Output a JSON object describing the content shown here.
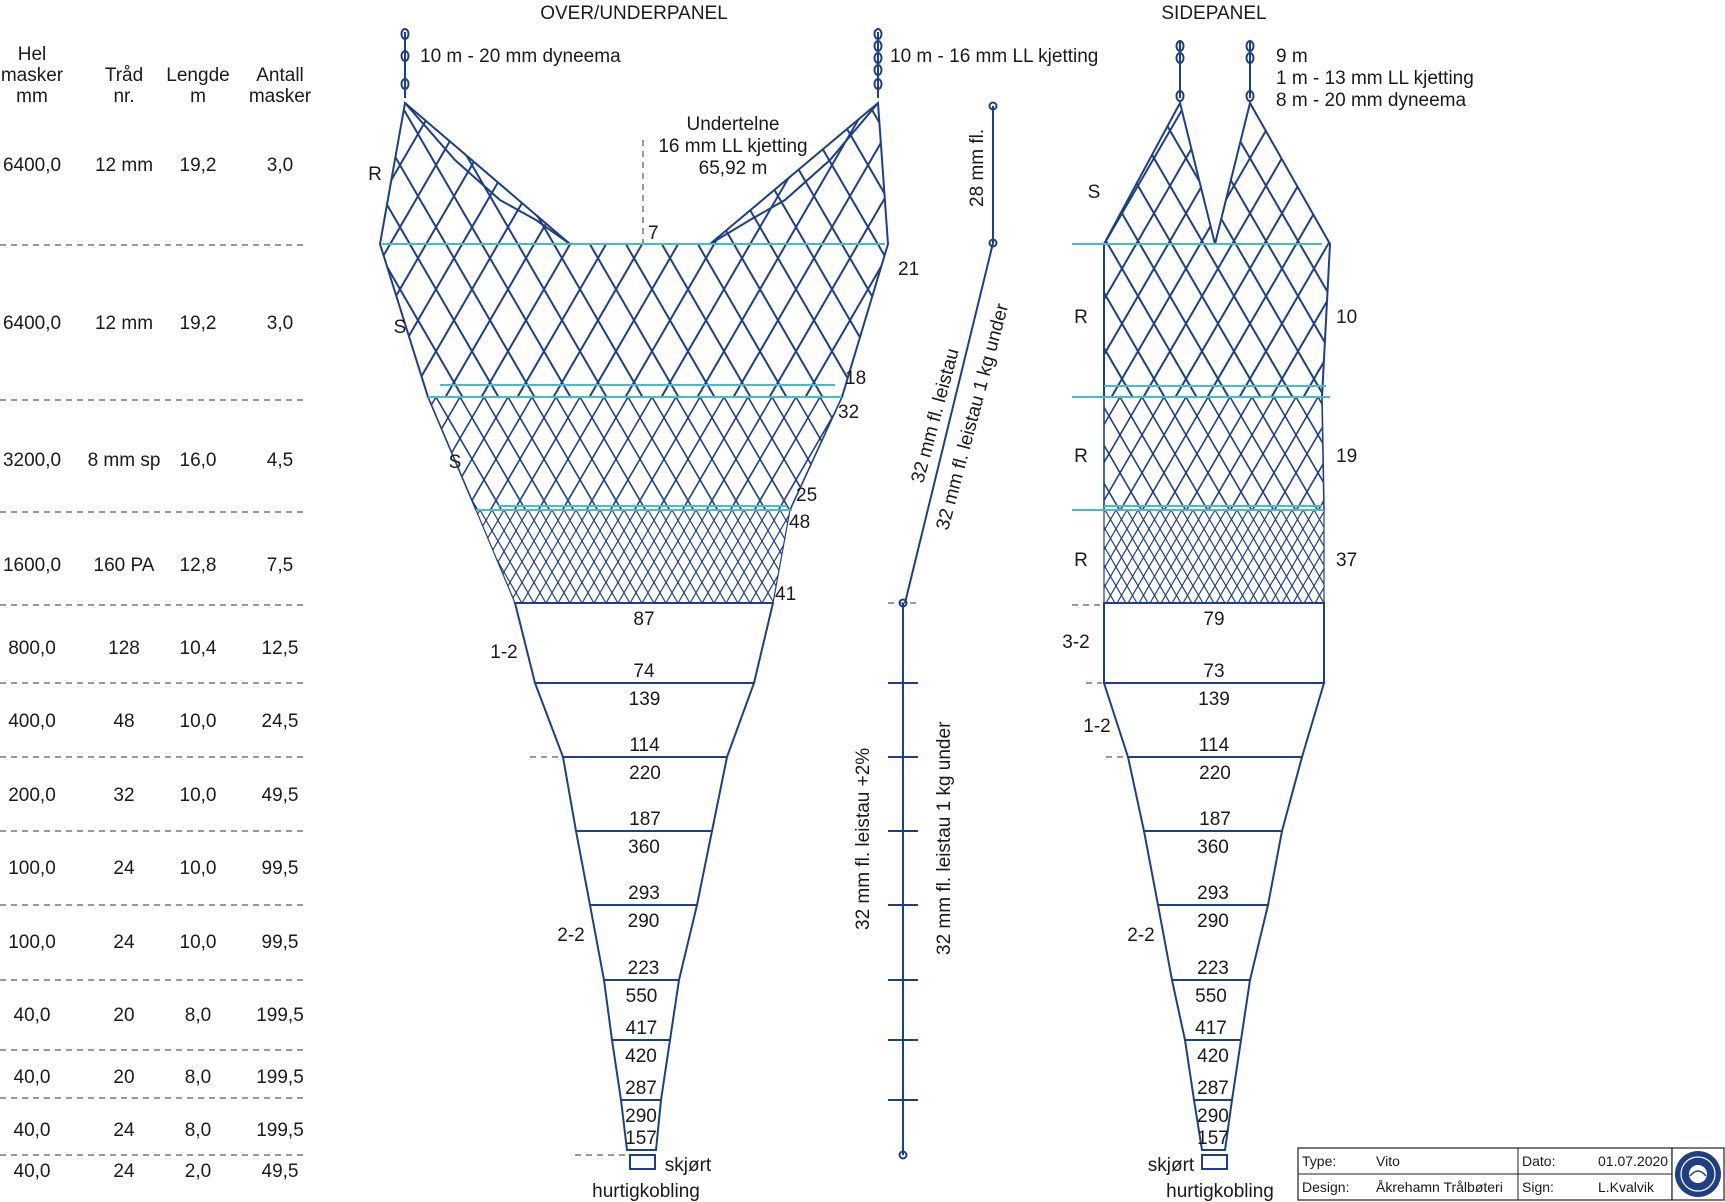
{
  "colors": {
    "net": "#1f3f85",
    "teal": "#46bdc6",
    "text": "#1a1a1a"
  },
  "headers": {
    "col1": [
      "Hel",
      "masker",
      "mm"
    ],
    "col2": [
      "Tråd",
      "nr."
    ],
    "col3": [
      "Lengde",
      "m"
    ],
    "col4": [
      "Antall",
      "masker"
    ]
  },
  "rows": [
    {
      "mesh": "6400,0",
      "thread": "12 mm",
      "length": "19,2",
      "count": "3,0"
    },
    {
      "mesh": "6400,0",
      "thread": "12 mm",
      "length": "19,2",
      "count": "3,0"
    },
    {
      "mesh": "3200,0",
      "thread": "8 mm sp",
      "length": "16,0",
      "count": "4,5"
    },
    {
      "mesh": "1600,0",
      "thread": "160 PA",
      "length": "12,8",
      "count": "7,5"
    },
    {
      "mesh": "800,0",
      "thread": "128",
      "length": "10,4",
      "count": "12,5"
    },
    {
      "mesh": "400,0",
      "thread": "48",
      "length": "10,0",
      "count": "24,5"
    },
    {
      "mesh": "200,0",
      "thread": "32",
      "length": "10,0",
      "count": "49,5"
    },
    {
      "mesh": "100,0",
      "thread": "24",
      "length": "10,0",
      "count": "99,5"
    },
    {
      "mesh": "100,0",
      "thread": "24",
      "length": "10,0",
      "count": "99,5"
    },
    {
      "mesh": "40,0",
      "thread": "20",
      "length": "8,0",
      "count": "199,5"
    },
    {
      "mesh": "40,0",
      "thread": "20",
      "length": "8,0",
      "count": "199,5"
    },
    {
      "mesh": "40,0",
      "thread": "24",
      "length": "8,0",
      "count": "199,5"
    },
    {
      "mesh": "40,0",
      "thread": "24",
      "length": "2,0",
      "count": "49,5"
    }
  ],
  "over": {
    "title": "OVER/UNDERPANEL",
    "rope_left": "10 m - 20 mm dyneema",
    "rope_right": "10 m - 16 mm LL kjetting",
    "undertelne": [
      "Undertelne",
      "16 mm LL kjetting",
      "65,92 m"
    ],
    "labels": {
      "R": "R",
      "S1": "S",
      "S2": "S",
      "n7": "7",
      "n21": "21",
      "n18": "18",
      "n32": "32",
      "n25": "25",
      "n48": "48",
      "n41": "41",
      "s12": "1-2",
      "s22": "2-2"
    },
    "numbers": [
      [
        "87",
        "74"
      ],
      [
        "139",
        "114"
      ],
      [
        "220",
        "187"
      ],
      [
        "360",
        "293"
      ],
      [
        "290",
        "223"
      ],
      [
        "550",
        "417"
      ],
      [
        "420",
        "287"
      ],
      [
        "290",
        "157"
      ]
    ],
    "skjort": "skjørt",
    "hurtig": "hurtigkobling"
  },
  "side": {
    "title": "SIDEPANEL",
    "rope": [
      "9 m",
      "1 m - 13 mm LL kjetting",
      "8 m - 20 mm dyneema"
    ],
    "labels": {
      "S": "S",
      "R1": "R",
      "R2": "R",
      "R3": "R",
      "n10": "10",
      "n19": "19",
      "n37": "37",
      "s32": "3-2",
      "s12": "1-2",
      "s22": "2-2"
    },
    "numbers": [
      [
        "79",
        "73"
      ],
      [
        "139",
        "114"
      ],
      [
        "220",
        "187"
      ],
      [
        "360",
        "293"
      ],
      [
        "290",
        "223"
      ],
      [
        "550",
        "417"
      ],
      [
        "420",
        "287"
      ],
      [
        "290",
        "157"
      ]
    ],
    "skjort": "skjørt",
    "hurtig": "hurtigkobling"
  },
  "ropes": {
    "fl28": "28 mm fl.",
    "leistau_a": "32 mm fl. leistau",
    "leistau_b": "32 mm fl. leistau 1 kg under",
    "leistau_c": "32 mm fl. leistau +2%",
    "leistau_d": "32 mm fl. leistau 1 kg under"
  },
  "titleblock": {
    "type_label": "Type:",
    "type_value": "Vito",
    "design_label": "Design:",
    "design_value": "Åkrehamn Trålbøteri",
    "date_label": "Dato:",
    "date_value": "01.07.2020",
    "sign_label": "Sign:",
    "sign_value": "L.Kvalvik"
  }
}
